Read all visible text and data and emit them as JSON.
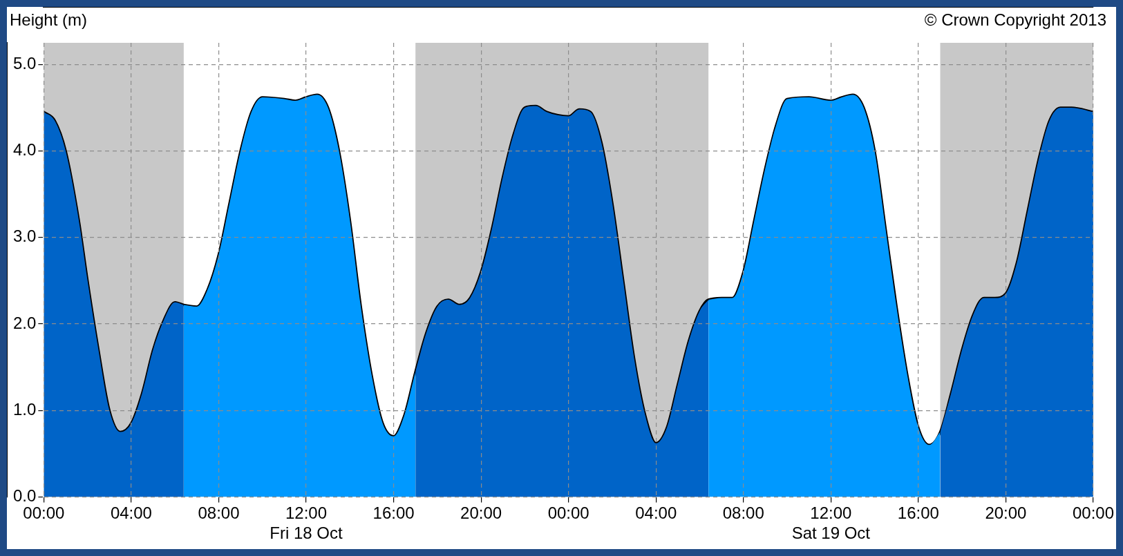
{
  "chart_data": {
    "type": "area",
    "ylabel": "Height (m)",
    "annotations": [
      "© Crown Copyright 2013"
    ],
    "xlim": [
      "2013-10-18T00:00",
      "2013-10-20T00:00"
    ],
    "ylim": [
      0,
      5.25
    ],
    "xticks": [
      {
        "value": "2013-10-18T00:00",
        "label": "00:00"
      },
      {
        "value": "2013-10-18T04:00",
        "label": "04:00"
      },
      {
        "value": "2013-10-18T08:00",
        "label": "08:00"
      },
      {
        "value": "2013-10-18T12:00",
        "label": "12:00\nFri 18 Oct"
      },
      {
        "value": "2013-10-18T16:00",
        "label": "16:00"
      },
      {
        "value": "2013-10-18T20:00",
        "label": "20:00"
      },
      {
        "value": "2013-10-19T00:00",
        "label": "00:00"
      },
      {
        "value": "2013-10-19T04:00",
        "label": "04:00"
      },
      {
        "value": "2013-10-19T08:00",
        "label": "08:00"
      },
      {
        "value": "2013-10-19T12:00",
        "label": "12:00\nSat 19 Oct"
      },
      {
        "value": "2013-10-19T16:00",
        "label": "16:00"
      },
      {
        "value": "2013-10-19T20:00",
        "label": "20:00"
      },
      {
        "value": "2013-10-20T00:00",
        "label": "00:00"
      }
    ],
    "yticks": [
      {
        "value": 0,
        "label": "0.0"
      },
      {
        "value": 1,
        "label": "1.0"
      },
      {
        "value": 2,
        "label": "2.0"
      },
      {
        "value": 3,
        "label": "3.0"
      },
      {
        "value": 4,
        "label": "4.0"
      },
      {
        "value": 5,
        "label": "5.0"
      }
    ],
    "grid": true,
    "legend": false,
    "marker": "none",
    "line_style": "solid",
    "bands": [
      {
        "axis": "x",
        "from": "2013-10-18T00:00",
        "to": "2013-10-18T06:24",
        "color": "#c8c8c8"
      },
      {
        "axis": "x",
        "from": "2013-10-18T17:00",
        "to": "2013-10-19T06:24",
        "color": "#c8c8c8"
      },
      {
        "axis": "x",
        "from": "2013-10-19T17:00",
        "to": "2013-10-20T00:00",
        "color": "#c8c8c8"
      }
    ],
    "series": [
      {
        "color": "#0064c8",
        "x": [
          "2013-10-18T00:00",
          "2013-10-18T00:30",
          "2013-10-18T01:00",
          "2013-10-18T01:36",
          "2013-10-18T02:00",
          "2013-10-18T02:30",
          "2013-10-18T03:00",
          "2013-10-18T03:30",
          "2013-10-18T04:00",
          "2013-10-18T04:30",
          "2013-10-18T05:00",
          "2013-10-18T05:30",
          "2013-10-18T06:00",
          "2013-10-18T06:24",
          "2013-10-18T12:00",
          "2013-10-18T17:00",
          "2013-10-18T17:30",
          "2013-10-18T18:00",
          "2013-10-18T18:30",
          "2013-10-18T19:00",
          "2013-10-18T19:30",
          "2013-10-18T20:00",
          "2013-10-18T20:30",
          "2013-10-18T21:00",
          "2013-10-18T21:30",
          "2013-10-18T22:00",
          "2013-10-18T22:30",
          "2013-10-18T23:00",
          "2013-10-19T00:00",
          "2013-10-19T00:30",
          "2013-10-19T01:00",
          "2013-10-19T01:30",
          "2013-10-19T02:00",
          "2013-10-19T02:30",
          "2013-10-19T03:00",
          "2013-10-19T03:30",
          "2013-10-19T04:00",
          "2013-10-19T04:30",
          "2013-10-19T05:00",
          "2013-10-19T05:30",
          "2013-10-19T06:00",
          "2013-10-19T06:24",
          "2013-10-19T12:00",
          "2013-10-19T17:00",
          "2013-10-19T17:30",
          "2013-10-19T18:00",
          "2013-10-19T18:30",
          "2013-10-19T19:00",
          "2013-10-19T19:30",
          "2013-10-19T20:00",
          "2013-10-19T20:30",
          "2013-10-19T21:00",
          "2013-10-19T21:30",
          "2013-10-19T22:00",
          "2013-10-19T22:30",
          "2013-10-19T23:00",
          "2013-10-20T00:00"
        ],
        "values": [
          4.45,
          4.35,
          4.0,
          3.2,
          2.5,
          1.7,
          1.0,
          0.75,
          0.85,
          1.2,
          1.7,
          2.05,
          2.25,
          2.22,
          null,
          1.45,
          1.9,
          2.2,
          2.28,
          2.22,
          2.3,
          2.6,
          3.1,
          3.7,
          4.2,
          4.5,
          4.52,
          4.45,
          4.4,
          4.48,
          4.45,
          4.1,
          3.4,
          2.5,
          1.6,
          0.95,
          0.62,
          0.8,
          1.3,
          1.8,
          2.15,
          2.28,
          null,
          0.75,
          1.2,
          1.7,
          2.1,
          2.3,
          2.3,
          2.35,
          2.7,
          3.3,
          3.9,
          4.35,
          4.5,
          4.5,
          4.45
        ]
      },
      {
        "color": "#0099ff",
        "x": [
          "2013-10-18T06:24",
          "2013-10-18T07:00",
          "2013-10-18T07:30",
          "2013-10-18T08:00",
          "2013-10-18T08:30",
          "2013-10-18T09:00",
          "2013-10-18T09:30",
          "2013-10-18T10:00",
          "2013-10-18T11:00",
          "2013-10-18T11:30",
          "2013-10-18T12:00",
          "2013-10-18T12:30",
          "2013-10-18T13:00",
          "2013-10-18T13:30",
          "2013-10-18T14:00",
          "2013-10-18T14:30",
          "2013-10-18T15:00",
          "2013-10-18T15:30",
          "2013-10-18T16:00",
          "2013-10-18T16:30",
          "2013-10-18T17:00",
          "2013-10-19T00:00",
          "2013-10-19T06:24",
          "2013-10-19T07:00",
          "2013-10-19T07:30",
          "2013-10-19T08:00",
          "2013-10-19T08:30",
          "2013-10-19T09:00",
          "2013-10-19T09:30",
          "2013-10-19T10:00",
          "2013-10-19T11:00",
          "2013-10-19T12:00",
          "2013-10-19T12:30",
          "2013-10-19T13:00",
          "2013-10-19T13:30",
          "2013-10-19T14:00",
          "2013-10-19T14:30",
          "2013-10-19T15:00",
          "2013-10-19T15:30",
          "2013-10-19T16:00",
          "2013-10-19T16:30",
          "2013-10-19T17:00"
        ],
        "values": [
          2.22,
          2.2,
          2.4,
          2.8,
          3.4,
          4.0,
          4.45,
          4.62,
          4.6,
          4.58,
          4.62,
          4.65,
          4.5,
          4.0,
          3.2,
          2.2,
          1.4,
          0.85,
          0.7,
          0.95,
          1.45,
          null,
          2.28,
          2.3,
          2.3,
          2.6,
          3.2,
          3.8,
          4.3,
          4.6,
          4.62,
          4.58,
          4.62,
          4.65,
          4.5,
          4.0,
          3.1,
          2.2,
          1.4,
          0.8,
          0.6,
          0.75
        ]
      },
      {
        "type": "line",
        "color": "#000000",
        "x": [
          "2013-10-18T00:00",
          "2013-10-18T00:30",
          "2013-10-18T01:00",
          "2013-10-18T01:36",
          "2013-10-18T02:00",
          "2013-10-18T02:30",
          "2013-10-18T03:00",
          "2013-10-18T03:30",
          "2013-10-18T04:00",
          "2013-10-18T04:30",
          "2013-10-18T05:00",
          "2013-10-18T05:30",
          "2013-10-18T06:00",
          "2013-10-18T06:24",
          "2013-10-18T07:00",
          "2013-10-18T07:30",
          "2013-10-18T08:00",
          "2013-10-18T08:30",
          "2013-10-18T09:00",
          "2013-10-18T09:30",
          "2013-10-18T10:00",
          "2013-10-18T11:00",
          "2013-10-18T11:30",
          "2013-10-18T12:00",
          "2013-10-18T12:30",
          "2013-10-18T13:00",
          "2013-10-18T13:30",
          "2013-10-18T14:00",
          "2013-10-18T14:30",
          "2013-10-18T15:00",
          "2013-10-18T15:30",
          "2013-10-18T16:00",
          "2013-10-18T16:30",
          "2013-10-18T17:00",
          "2013-10-18T17:30",
          "2013-10-18T18:00",
          "2013-10-18T18:30",
          "2013-10-18T19:00",
          "2013-10-18T19:30",
          "2013-10-18T20:00",
          "2013-10-18T20:30",
          "2013-10-18T21:00",
          "2013-10-18T21:30",
          "2013-10-18T22:00",
          "2013-10-18T22:30",
          "2013-10-18T23:00",
          "2013-10-19T00:00",
          "2013-10-19T00:30",
          "2013-10-19T01:00",
          "2013-10-19T01:30",
          "2013-10-19T02:00",
          "2013-10-19T02:30",
          "2013-10-19T03:00",
          "2013-10-19T03:30",
          "2013-10-19T04:00",
          "2013-10-19T04:30",
          "2013-10-19T05:00",
          "2013-10-19T05:30",
          "2013-10-19T06:00",
          "2013-10-19T06:24",
          "2013-10-19T07:00",
          "2013-10-19T07:30",
          "2013-10-19T08:00",
          "2013-10-19T08:30",
          "2013-10-19T09:00",
          "2013-10-19T09:30",
          "2013-10-19T10:00",
          "2013-10-19T11:00",
          "2013-10-19T12:00",
          "2013-10-19T12:30",
          "2013-10-19T13:00",
          "2013-10-19T13:30",
          "2013-10-19T14:00",
          "2013-10-19T14:30",
          "2013-10-19T15:00",
          "2013-10-19T15:30",
          "2013-10-19T16:00",
          "2013-10-19T16:30",
          "2013-10-19T17:00",
          "2013-10-19T17:30",
          "2013-10-19T18:00",
          "2013-10-19T18:30",
          "2013-10-19T19:00",
          "2013-10-19T19:30",
          "2013-10-19T20:00",
          "2013-10-19T20:30",
          "2013-10-19T21:00",
          "2013-10-19T21:30",
          "2013-10-19T22:00",
          "2013-10-19T22:30",
          "2013-10-19T23:00",
          "2013-10-20T00:00"
        ],
        "values": [
          4.45,
          4.35,
          4.0,
          3.2,
          2.5,
          1.7,
          1.0,
          0.75,
          0.85,
          1.2,
          1.7,
          2.05,
          2.25,
          2.22,
          2.2,
          2.4,
          2.8,
          3.4,
          4.0,
          4.45,
          4.62,
          4.6,
          4.58,
          4.62,
          4.65,
          4.5,
          4.0,
          3.2,
          2.2,
          1.4,
          0.85,
          0.7,
          0.95,
          1.45,
          1.9,
          2.2,
          2.28,
          2.22,
          2.3,
          2.6,
          3.1,
          3.7,
          4.2,
          4.5,
          4.52,
          4.45,
          4.4,
          4.48,
          4.45,
          4.1,
          3.4,
          2.5,
          1.6,
          0.95,
          0.62,
          0.8,
          1.3,
          1.8,
          2.15,
          2.28,
          2.3,
          2.3,
          2.6,
          3.2,
          3.8,
          4.3,
          4.6,
          4.62,
          4.58,
          4.62,
          4.65,
          4.5,
          4.0,
          3.1,
          2.2,
          1.4,
          0.8,
          0.6,
          0.75,
          1.2,
          1.7,
          2.1,
          2.3,
          2.3,
          2.35,
          2.7,
          3.3,
          3.9,
          4.35,
          4.5,
          4.5,
          4.45
        ]
      }
    ]
  }
}
